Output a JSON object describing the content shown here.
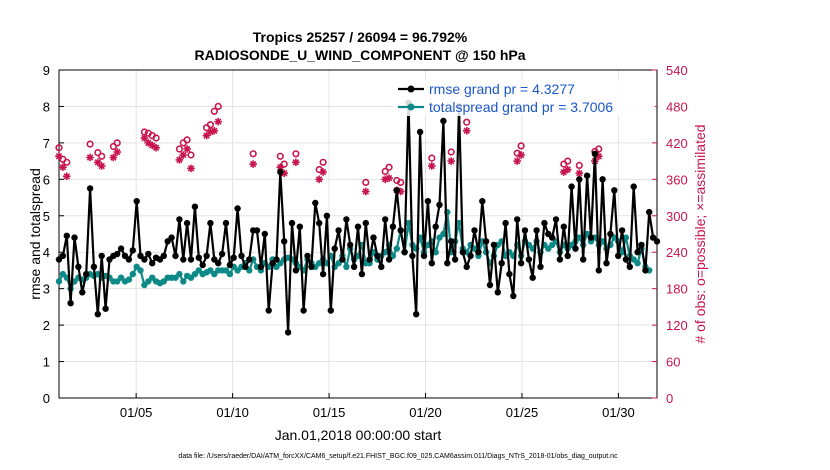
{
  "chart_data": {
    "type": "line",
    "title": "Tropics 25257 / 26094 = 96.792%",
    "subtitle": "RADIOSONDE_U_WIND_COMPONENT @ 150 hPa",
    "xlabel": "Jan.01,2018 00:00:00 start",
    "ylabel_left": "rmse and totalspread",
    "ylabel_right": "# of obs: o=possible; ×=assimilated",
    "xlim": [
      1,
      32
    ],
    "ylim_left": [
      0,
      9
    ],
    "ylim_right": [
      0,
      540
    ],
    "x_ticks": [
      5,
      10,
      15,
      20,
      25,
      30
    ],
    "x_tick_labels": [
      "01/05",
      "01/10",
      "01/15",
      "01/20",
      "01/25",
      "01/30"
    ],
    "y_ticks_left": [
      0,
      1,
      2,
      3,
      4,
      5,
      6,
      7,
      8,
      9
    ],
    "y_ticks_left_labels": [
      "0",
      "1",
      "2",
      "3",
      "4",
      "5",
      "6",
      "7",
      "8",
      "9"
    ],
    "y_ticks_right": [
      0,
      60,
      120,
      180,
      240,
      300,
      360,
      420,
      480,
      540
    ],
    "y_ticks_right_labels": [
      "0",
      "60",
      "120",
      "180",
      "240",
      "300",
      "360",
      "420",
      "480",
      "540"
    ],
    "grid": true,
    "legend_position": "top-right",
    "colors": {
      "rmse": "#000000",
      "totalspread": "#0d8a87",
      "obs": "#C8154E",
      "legend_text": "#1a57c9"
    },
    "series": [
      {
        "name": "rmse grand pr = 4.3277",
        "axis": "left",
        "values": [
          3.8,
          3.9,
          4.45,
          2.6,
          4.4,
          3.6,
          2.9,
          3.4,
          5.75,
          3.6,
          2.3,
          3.9,
          2.45,
          3.8,
          3.9,
          3.95,
          4.1,
          3.9,
          3.8,
          4.05,
          5.4,
          3.9,
          3.8,
          3.95,
          3.7,
          3.85,
          3.8,
          3.9,
          4.3,
          4.4,
          3.9,
          4.9,
          3.8,
          4.8,
          3.8,
          5.25,
          3.85,
          3.65,
          3.9,
          4.8,
          3.8,
          3.7,
          3.95,
          4.8,
          3.65,
          3.85,
          5.2,
          3.9,
          3.6,
          3.8,
          4.6,
          4.6,
          3.6,
          4.5,
          2.4,
          3.7,
          3.8,
          6.2,
          4.3,
          1.8,
          4.8,
          3.5,
          4.7,
          2.4,
          3.9,
          3.6,
          5.35,
          4.8,
          3.4,
          5.0,
          2.4,
          4.1,
          4.6,
          3.8,
          4.9,
          4.2,
          3.6,
          4.7,
          3.4,
          4.8,
          3.8,
          4.4,
          3.9,
          3.6,
          4.9,
          3.8,
          4.7,
          5.7,
          4.6,
          4.0,
          8.1,
          3.9,
          2.3,
          7.3,
          3.9,
          5.4,
          3.7,
          4.7,
          5.3,
          7.6,
          3.7,
          4.3,
          3.8,
          8.0,
          4.0,
          3.6,
          3.9,
          4.6,
          4.0,
          5.4,
          4.3,
          3.1,
          4.2,
          2.9,
          3.7,
          4.8,
          3.4,
          2.8,
          4.9,
          3.7,
          4.6,
          3.8,
          3.3,
          4.6,
          3.6,
          4.8,
          4.5,
          4.4,
          4.9,
          3.8,
          4.7,
          3.9,
          5.8,
          4.1,
          6.0,
          3.8,
          6.1,
          4.4,
          6.7,
          3.5,
          6.0,
          3.7,
          4.5,
          5.7,
          3.9,
          4.6,
          3.8,
          3.6,
          5.8,
          4.0,
          4.2,
          3.5,
          5.1,
          4.4,
          4.3
        ]
      },
      {
        "name": "totalspread grand pr = 3.7006",
        "axis": "left",
        "values": [
          3.2,
          3.4,
          3.3,
          3.0,
          3.2,
          3.3,
          3.25,
          3.3,
          3.4,
          3.35,
          3.4,
          3.3,
          3.35,
          3.3,
          3.2,
          3.2,
          3.3,
          3.2,
          3.25,
          3.4,
          3.6,
          3.5,
          3.1,
          3.2,
          3.3,
          3.2,
          3.15,
          3.2,
          3.3,
          3.3,
          3.3,
          3.4,
          3.2,
          3.35,
          3.3,
          3.4,
          3.5,
          3.4,
          3.45,
          3.5,
          3.4,
          3.5,
          3.5,
          3.5,
          3.4,
          3.6,
          3.5,
          3.6,
          3.7,
          3.5,
          3.8,
          3.6,
          3.5,
          3.7,
          3.6,
          3.8,
          3.6,
          3.7,
          3.8,
          3.85,
          3.8,
          3.7,
          3.6,
          3.5,
          3.8,
          3.7,
          3.6,
          3.7,
          3.8,
          3.7,
          3.9,
          3.6,
          3.7,
          3.9,
          3.6,
          4.1,
          3.8,
          3.9,
          4.2,
          3.7,
          3.7,
          4.0,
          3.8,
          3.9,
          4.0,
          4.2,
          3.9,
          4.1,
          4.6,
          4.0,
          4.8,
          4.2,
          4.1,
          4.4,
          4.0,
          4.2,
          4.3,
          4.0,
          4.4,
          4.5,
          5.1,
          4.0,
          4.3,
          4.8,
          4.1,
          4.0,
          4.2,
          4.1,
          3.9,
          4.3,
          4.0,
          3.7,
          3.9,
          4.2,
          4.3,
          3.9,
          4.0,
          3.9,
          4.2,
          3.9,
          4.3,
          4.2,
          4.1,
          4.3,
          4.0,
          4.2,
          4.1,
          4.2,
          4.3,
          4.0,
          4.2,
          4.1,
          4.2,
          4.3,
          4.4,
          4.2,
          4.5,
          4.3,
          4.4,
          4.2,
          4.3,
          4.1,
          4.2,
          4.4,
          4.3,
          4.0,
          4.4,
          3.9,
          3.8,
          3.7,
          4.1,
          3.6,
          3.5
        ]
      },
      {
        "name": "obs possible (o)",
        "axis": "right",
        "values": [
          412,
          393,
          388,
          null,
          null,
          null,
          null,
          null,
          418,
          null,
          404,
          398,
          null,
          null,
          414,
          420,
          null,
          null,
          null,
          null,
          null,
          null,
          438,
          436,
          432,
          428,
          null,
          null,
          null,
          null,
          null,
          410,
          420,
          425,
          400,
          null,
          null,
          null,
          445,
          450,
          472,
          480,
          null,
          null,
          null,
          null,
          null,
          null,
          null,
          null,
          402,
          null,
          null,
          null,
          null,
          null,
          null,
          398,
          385,
          null,
          null,
          402,
          null,
          null,
          null,
          null,
          null,
          376,
          388,
          null,
          null,
          null,
          null,
          null,
          null,
          null,
          null,
          null,
          null,
          355,
          null,
          null,
          null,
          null,
          373,
          380,
          null,
          358,
          355,
          null,
          null,
          null,
          null,
          null,
          null,
          null,
          395,
          null,
          null,
          null,
          null,
          405,
          null,
          null,
          null,
          454,
          null,
          null,
          null,
          null,
          null,
          null,
          null,
          null,
          null,
          null,
          null,
          null,
          403,
          415,
          null,
          null,
          null,
          null,
          null,
          null,
          null,
          null,
          null,
          null,
          385,
          390,
          null,
          null,
          383,
          null,
          null,
          null,
          406,
          410,
          null,
          null,
          null,
          null,
          null,
          null,
          null,
          null,
          null,
          null
        ]
      },
      {
        "name": "obs assimilated (×)",
        "axis": "right",
        "values": [
          398,
          380,
          365,
          null,
          null,
          null,
          null,
          null,
          396,
          null,
          388,
          382,
          null,
          null,
          396,
          405,
          null,
          null,
          null,
          null,
          null,
          null,
          428,
          420,
          416,
          412,
          null,
          null,
          null,
          null,
          null,
          392,
          400,
          410,
          378,
          null,
          null,
          null,
          432,
          438,
          440,
          455,
          null,
          null,
          null,
          null,
          null,
          null,
          null,
          null,
          385,
          null,
          null,
          null,
          null,
          null,
          null,
          380,
          370,
          null,
          null,
          388,
          null,
          null,
          null,
          null,
          null,
          360,
          372,
          null,
          null,
          null,
          null,
          null,
          null,
          null,
          null,
          null,
          null,
          340,
          null,
          null,
          null,
          null,
          360,
          362,
          null,
          342,
          340,
          null,
          null,
          null,
          null,
          null,
          null,
          null,
          382,
          null,
          null,
          null,
          null,
          390,
          null,
          null,
          null,
          440,
          null,
          null,
          null,
          null,
          null,
          null,
          null,
          null,
          null,
          null,
          null,
          null,
          390,
          400,
          null,
          null,
          null,
          null,
          null,
          null,
          null,
          null,
          null,
          null,
          372,
          376,
          null,
          null,
          370,
          null,
          null,
          null,
          390,
          398,
          null,
          null,
          null,
          null,
          null,
          null,
          null,
          null,
          null,
          null
        ]
      }
    ],
    "legend": [
      "rmse grand pr = 4.3277",
      "totalspread grand pr = 3.7006"
    ],
    "footer_note": "data file: /Users/raeder/DAI/ATM_forcXX/CAM6_setup/f.e21.FHIST_BGC.f09_025.CAM6assim.011/Diags_NTrS_2018-01/obs_diag_output.nc"
  }
}
